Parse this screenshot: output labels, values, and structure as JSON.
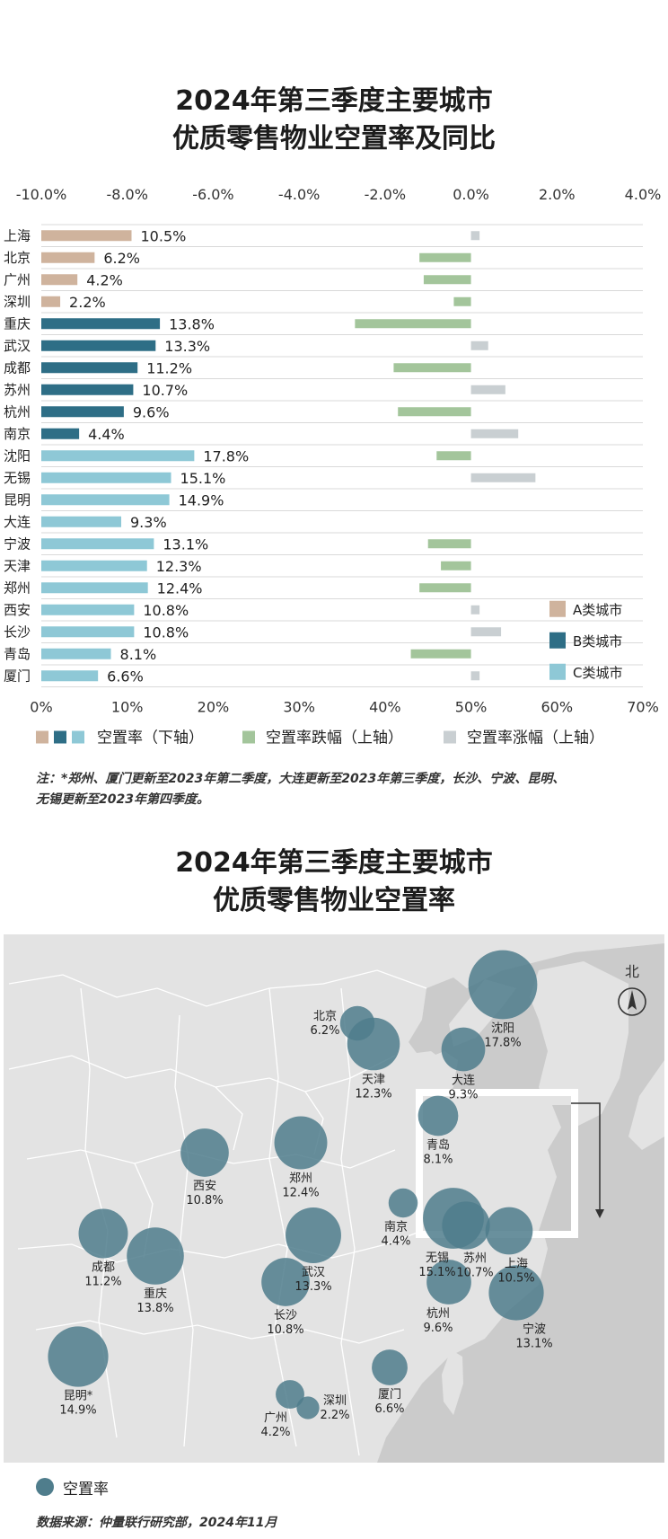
{
  "title_chart": [
    "2024年第三季度主要城市",
    "优质零售物业空置率及同比"
  ],
  "title_map": [
    "2024年第三季度主要城市",
    "优质零售物业空置率"
  ],
  "note": [
    "注：*郑州、厦门更新至2023年第二季度，大连更新至2023年第三季度，长沙、宁波、昆明、",
    "无锡更新至2023年第四季度。"
  ],
  "source": "数据来源：仲量联行研究部，2024年11月",
  "colors": {
    "A": "#cfb39d",
    "B": "#2e6e86",
    "C": "#8ec8d6",
    "decrease": "#a3c59b",
    "increase": "#c9cfd2",
    "bubble": "#4f7d8c",
    "map_land": "#e3e3e3",
    "map_sea": "#cbcbcb"
  },
  "chart_data": [
    {
      "type": "bar",
      "orientation": "horizontal",
      "categories": [
        "上海",
        "北京",
        "广州",
        "深圳",
        "重庆",
        "武汉",
        "成都",
        "苏州",
        "杭州",
        "南京",
        "沈阳",
        "无锡",
        "昆明",
        "大连",
        "宁波",
        "天津",
        "郑州",
        "西安",
        "长沙",
        "青岛",
        "厦门"
      ],
      "city_class": [
        "A",
        "A",
        "A",
        "A",
        "B",
        "B",
        "B",
        "B",
        "B",
        "B",
        "C",
        "C",
        "C",
        "C",
        "C",
        "C",
        "C",
        "C",
        "C",
        "C",
        "C"
      ],
      "series": [
        {
          "name": "空置率（下轴）",
          "axis": "bottom",
          "values": [
            10.5,
            6.2,
            4.2,
            2.2,
            13.8,
            13.3,
            11.2,
            10.7,
            9.6,
            4.4,
            17.8,
            15.1,
            14.9,
            9.3,
            13.1,
            12.3,
            12.4,
            10.8,
            10.8,
            8.1,
            6.6
          ],
          "labels": [
            "10.5%",
            "6.2%",
            "4.2%",
            "2.2%",
            "13.8%",
            "13.3%",
            "11.2%",
            "10.7%",
            "9.6%",
            "4.4%",
            "17.8%",
            "15.1%",
            "14.9%",
            "9.3%",
            "13.1%",
            "12.3%",
            "12.4%",
            "10.8%",
            "10.8%",
            "8.1%",
            "6.6%"
          ]
        },
        {
          "name": "同比（上轴）",
          "axis": "top",
          "values": [
            0.2,
            -1.2,
            -1.1,
            -0.4,
            -2.7,
            0.4,
            -1.8,
            0.8,
            -1.7,
            1.1,
            -0.8,
            1.5,
            null,
            null,
            -1.0,
            -0.7,
            -1.2,
            0.2,
            0.7,
            -1.4,
            0.2
          ]
        }
      ],
      "bottom_axis": {
        "ticks": [
          "0%",
          "10%",
          "20%",
          "30%",
          "40%",
          "50%",
          "60%",
          "70%"
        ],
        "range": [
          0,
          70
        ]
      },
      "top_axis": {
        "ticks": [
          "-10.0%",
          "-8.0%",
          "-6.0%",
          "-4.0%",
          "-2.0%",
          "0.0%",
          "2.0%",
          "4.0%"
        ],
        "range": [
          -10,
          4
        ]
      },
      "legend_classes": [
        "A类城市",
        "B类城市",
        "C类城市"
      ],
      "legend_bottom": [
        "空置率（下轴）",
        "空置率跌幅（上轴）",
        "空置率涨幅（上轴）"
      ]
    },
    {
      "type": "bubble_map",
      "legend": "空置率",
      "north_label": "北",
      "points": [
        {
          "city": "沈阳",
          "value": "17.8%",
          "v": 17.8
        },
        {
          "city": "北京",
          "value": "6.2%",
          "v": 6.2
        },
        {
          "city": "天津",
          "value": "12.3%",
          "v": 12.3
        },
        {
          "city": "大连",
          "value": "9.3%",
          "v": 9.3
        },
        {
          "city": "青岛",
          "value": "8.1%",
          "v": 8.1
        },
        {
          "city": "西安",
          "value": "10.8%",
          "v": 10.8
        },
        {
          "city": "郑州",
          "value": "12.4%",
          "v": 12.4
        },
        {
          "city": "南京",
          "value": "4.4%",
          "v": 4.4
        },
        {
          "city": "成都",
          "value": "11.2%",
          "v": 11.2
        },
        {
          "city": "重庆",
          "value": "13.8%",
          "v": 13.8
        },
        {
          "city": "武汉",
          "value": "13.3%",
          "v": 13.3
        },
        {
          "city": "长沙",
          "value": "10.8%",
          "v": 10.8
        },
        {
          "city": "昆明*",
          "value": "14.9%",
          "v": 14.9
        },
        {
          "city": "广州",
          "value": "4.2%",
          "v": 4.2
        },
        {
          "city": "深圳",
          "value": "2.2%",
          "v": 2.2
        },
        {
          "city": "厦门",
          "value": "6.6%",
          "v": 6.6
        },
        {
          "city": "无锡",
          "value": "15.1%",
          "v": 15.1
        },
        {
          "city": "苏州",
          "value": "10.7%",
          "v": 10.7
        },
        {
          "city": "上海",
          "value": "10.5%",
          "v": 10.5
        },
        {
          "city": "杭州",
          "value": "9.6%",
          "v": 9.6
        },
        {
          "city": "宁波",
          "value": "13.1%",
          "v": 13.1
        }
      ]
    }
  ]
}
